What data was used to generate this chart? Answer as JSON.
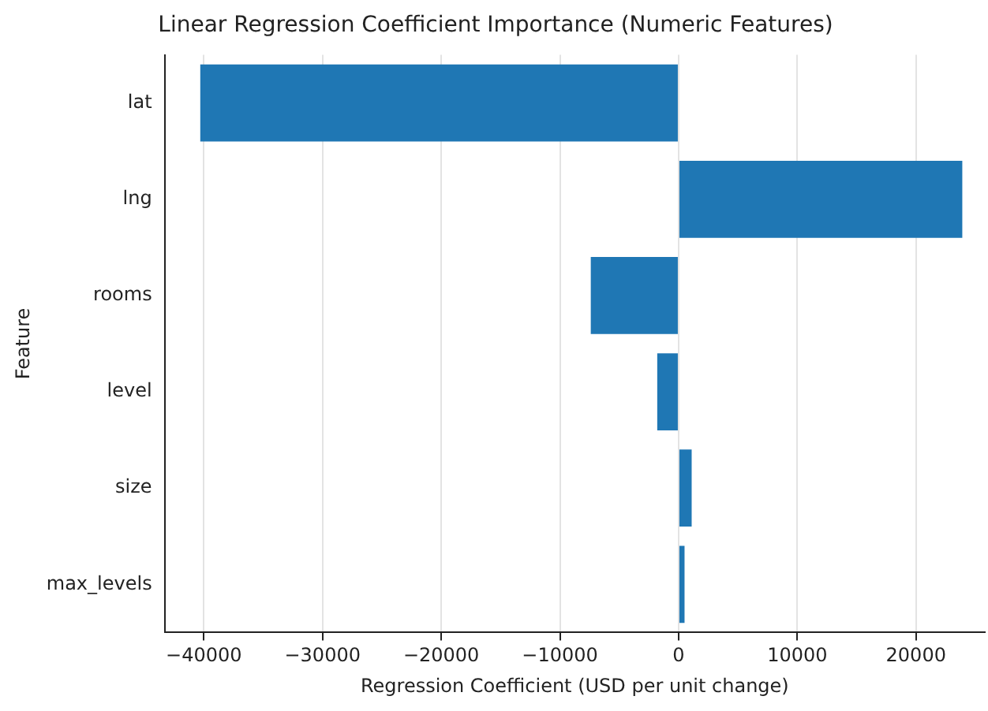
{
  "chart_data": {
    "type": "bar",
    "orientation": "horizontal",
    "title": "Linear Regression Coefficient Importance (Numeric Features)",
    "xlabel": "Regression Coefficient (USD per unit change)",
    "ylabel": "Feature",
    "categories": [
      "lat",
      "lng",
      "rooms",
      "level",
      "size",
      "max_levels"
    ],
    "values": [
      -40300,
      23900,
      -7400,
      -1800,
      1100,
      500
    ],
    "color": "#1f77b4",
    "xlim": [
      -43300,
      25800
    ],
    "xticks": [
      -40000,
      -30000,
      -20000,
      -10000,
      0,
      10000,
      20000
    ],
    "grid": "x"
  }
}
